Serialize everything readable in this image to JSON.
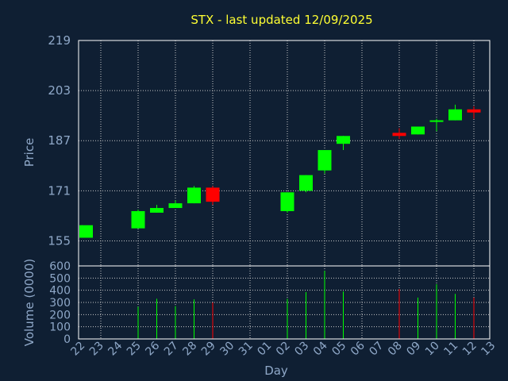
{
  "chart_data": [
    {
      "type": "candlestick",
      "title": "STX - last updated 12/09/2025",
      "ylabel": "Price",
      "ylim": [
        147,
        219
      ],
      "yticks": [
        155,
        171,
        187,
        203,
        219
      ],
      "grid": true,
      "colors": {
        "up": "#00ff00",
        "down": "#ff0000",
        "title": "#ffff33",
        "axis_text": "#8fa8c8",
        "background": "#0f1f33"
      },
      "categories": [
        "22",
        "23",
        "24",
        "25",
        "26",
        "27",
        "28",
        "29",
        "30",
        "31",
        "01",
        "02",
        "03",
        "04",
        "05",
        "06",
        "07",
        "08",
        "09",
        "10",
        "11",
        "12",
        "13"
      ],
      "candles": [
        {
          "x": "22",
          "open": 156,
          "high": 160,
          "low": 156,
          "close": 160
        },
        {
          "x": "25",
          "open": 159,
          "high": 165,
          "low": 159,
          "close": 164.5
        },
        {
          "x": "26",
          "open": 164,
          "high": 166.5,
          "low": 164,
          "close": 165.5
        },
        {
          "x": "27",
          "open": 165.5,
          "high": 168,
          "low": 165.5,
          "close": 167
        },
        {
          "x": "28",
          "open": 167,
          "high": 172.5,
          "low": 167,
          "close": 172
        },
        {
          "x": "29",
          "open": 172,
          "high": 172.5,
          "low": 166.5,
          "close": 167.5
        },
        {
          "x": "02",
          "open": 164.5,
          "high": 170.5,
          "low": 164,
          "close": 170.5
        },
        {
          "x": "03",
          "open": 171,
          "high": 176,
          "low": 170.5,
          "close": 176
        },
        {
          "x": "04",
          "open": 177.5,
          "high": 184,
          "low": 176.5,
          "close": 184
        },
        {
          "x": "05",
          "open": 186,
          "high": 188.5,
          "low": 184,
          "close": 188.5
        },
        {
          "x": "08",
          "open": 189.5,
          "high": 191,
          "low": 187.5,
          "close": 188.5
        },
        {
          "x": "09",
          "open": 189,
          "high": 191.5,
          "low": 189,
          "close": 191.5
        },
        {
          "x": "10",
          "open": 193,
          "high": 194,
          "low": 190,
          "close": 193.5
        },
        {
          "x": "11",
          "open": 193.5,
          "high": 198.5,
          "low": 193.5,
          "close": 197
        },
        {
          "x": "12",
          "open": 197,
          "high": 198,
          "low": 194,
          "close": 196
        }
      ]
    },
    {
      "type": "bar",
      "ylabel": "Volume (0000)",
      "xlabel": "Day",
      "ylim": [
        0,
        600
      ],
      "yticks": [
        0,
        100,
        200,
        300,
        400,
        500,
        600
      ],
      "categories": [
        "22",
        "23",
        "24",
        "25",
        "26",
        "27",
        "28",
        "29",
        "30",
        "31",
        "01",
        "02",
        "03",
        "04",
        "05",
        "06",
        "07",
        "08",
        "09",
        "10",
        "11",
        "12",
        "13"
      ],
      "bars": [
        {
          "x": "22",
          "value": 0,
          "direction": "up"
        },
        {
          "x": "25",
          "value": 265,
          "direction": "up"
        },
        {
          "x": "26",
          "value": 330,
          "direction": "up"
        },
        {
          "x": "27",
          "value": 270,
          "direction": "up"
        },
        {
          "x": "28",
          "value": 325,
          "direction": "up"
        },
        {
          "x": "29",
          "value": 300,
          "direction": "down"
        },
        {
          "x": "02",
          "value": 330,
          "direction": "up"
        },
        {
          "x": "03",
          "value": 385,
          "direction": "up"
        },
        {
          "x": "04",
          "value": 560,
          "direction": "up"
        },
        {
          "x": "05",
          "value": 390,
          "direction": "up"
        },
        {
          "x": "08",
          "value": 410,
          "direction": "down"
        },
        {
          "x": "09",
          "value": 340,
          "direction": "up"
        },
        {
          "x": "10",
          "value": 450,
          "direction": "up"
        },
        {
          "x": "11",
          "value": 370,
          "direction": "up"
        },
        {
          "x": "12",
          "value": 340,
          "direction": "down"
        }
      ]
    }
  ]
}
